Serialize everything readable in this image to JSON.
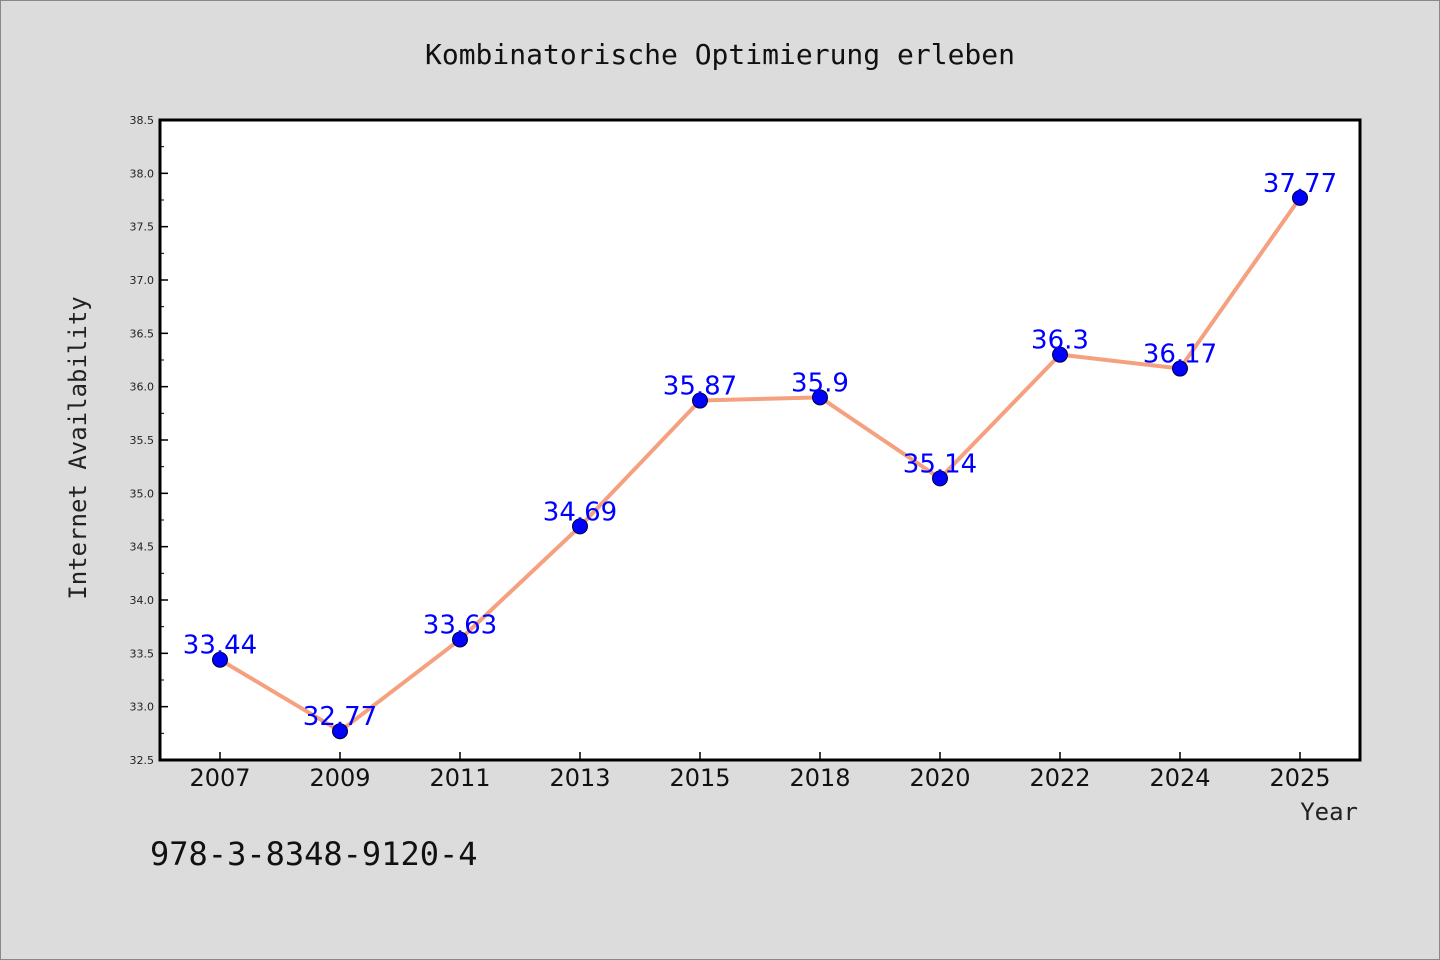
{
  "chart_data": {
    "type": "line",
    "title": "Kombinatorische Optimierung erleben",
    "xlabel": "Year",
    "ylabel": "Internet Availability",
    "categories": [
      "2007",
      "2009",
      "2011",
      "2013",
      "2015",
      "2018",
      "2020",
      "2022",
      "2024",
      "2025"
    ],
    "series": [
      {
        "values": [
          33.44,
          32.77,
          33.63,
          34.69,
          35.87,
          35.9,
          35.14,
          36.3,
          36.17,
          37.77
        ],
        "data_labels": [
          "33.44",
          "32.77",
          "33.63",
          "34.69",
          "35.87",
          "35.9",
          "35.14",
          "36.3",
          "36.17",
          "37.77"
        ]
      }
    ],
    "ylim": [
      32.5,
      38.5
    ],
    "yticks": [
      "32.5",
      "33.0",
      "33.5",
      "34.0",
      "34.5",
      "35.0",
      "35.5",
      "36.0",
      "36.5",
      "37.0",
      "37.5",
      "38.0",
      "38.5"
    ],
    "grid": false,
    "line_color": "#f5a07e",
    "marker_color": "#0000ff",
    "label_color": "#0000ff"
  },
  "footer": {
    "isbn": "978-3-8348-9120-4"
  }
}
